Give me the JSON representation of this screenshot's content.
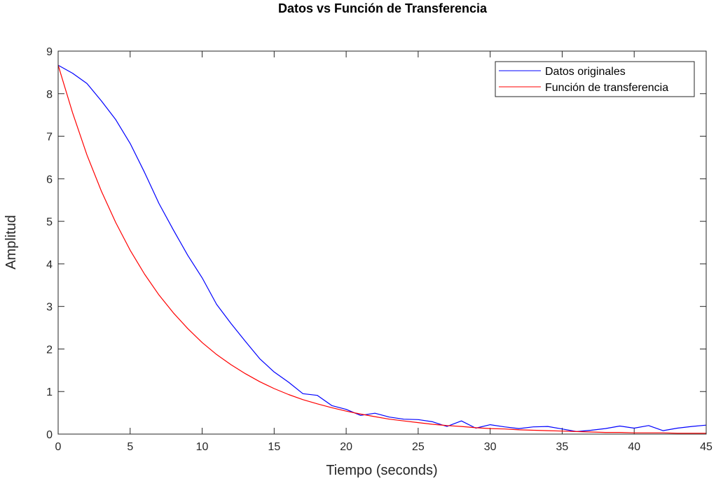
{
  "chart_data": {
    "type": "line",
    "title": "Datos vs Función de Transferencia",
    "xlabel": "Tiempo (seconds)",
    "ylabel": "Amplitud",
    "xlim": [
      0,
      45
    ],
    "ylim": [
      0,
      9
    ],
    "xticks": [
      "0",
      "5",
      "10",
      "15",
      "20",
      "25",
      "30",
      "35",
      "40",
      "45"
    ],
    "yticks": [
      "0",
      "1",
      "2",
      "3",
      "4",
      "5",
      "6",
      "7",
      "8",
      "9"
    ],
    "grid": false,
    "legend_position": "top-right",
    "series": [
      {
        "name": "Datos originales",
        "color": "#0000ff",
        "x": [
          0,
          1,
          2,
          3,
          4,
          5,
          6,
          7,
          8,
          9,
          10,
          11,
          12,
          13,
          14,
          15,
          16,
          17,
          18,
          19,
          20,
          21,
          22,
          23,
          24,
          25,
          26,
          27,
          28,
          29,
          30,
          31,
          32,
          33,
          34,
          35,
          36,
          37,
          38,
          39,
          40,
          41,
          42,
          43,
          44,
          45
        ],
        "y": [
          8.67,
          8.48,
          8.24,
          7.83,
          7.39,
          6.83,
          6.15,
          5.42,
          4.8,
          4.2,
          3.67,
          3.05,
          2.6,
          2.18,
          1.77,
          1.46,
          1.22,
          0.95,
          0.91,
          0.67,
          0.58,
          0.44,
          0.49,
          0.4,
          0.35,
          0.34,
          0.29,
          0.18,
          0.31,
          0.14,
          0.22,
          0.17,
          0.13,
          0.17,
          0.18,
          0.12,
          0.06,
          0.09,
          0.13,
          0.19,
          0.14,
          0.2,
          0.08,
          0.14,
          0.18,
          0.21
        ]
      },
      {
        "name": "Función de transferencia",
        "color": "#ff0000",
        "x": [
          0,
          1,
          2,
          3,
          4,
          5,
          6,
          7,
          8,
          9,
          10,
          11,
          12,
          13,
          14,
          15,
          16,
          17,
          18,
          19,
          20,
          21,
          22,
          23,
          24,
          25,
          26,
          27,
          28,
          29,
          30,
          31,
          32,
          33,
          34,
          35,
          36,
          37,
          38,
          39,
          40,
          41,
          42,
          43,
          44,
          45
        ],
        "y": [
          8.67,
          7.55,
          6.56,
          5.71,
          4.97,
          4.32,
          3.76,
          3.27,
          2.85,
          2.48,
          2.15,
          1.87,
          1.63,
          1.42,
          1.23,
          1.07,
          0.93,
          0.81,
          0.71,
          0.62,
          0.54,
          0.47,
          0.41,
          0.35,
          0.31,
          0.27,
          0.23,
          0.2,
          0.18,
          0.15,
          0.13,
          0.12,
          0.1,
          0.09,
          0.08,
          0.07,
          0.06,
          0.05,
          0.04,
          0.04,
          0.03,
          0.03,
          0.03,
          0.02,
          0.02,
          0.02
        ]
      }
    ]
  }
}
